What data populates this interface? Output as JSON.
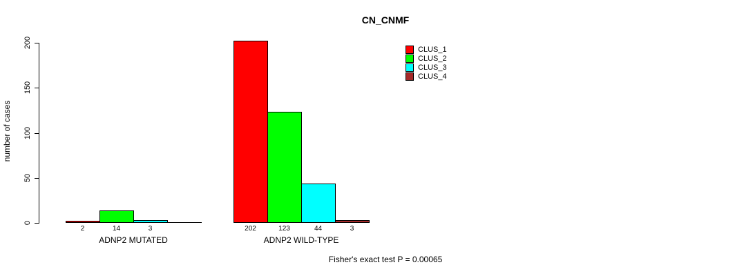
{
  "title": "CN_CNMF",
  "ylabel": "number of cases",
  "footer": "Fisher's exact test P = 0.00065",
  "chart_data": {
    "type": "bar",
    "title": "CN_CNMF",
    "xlabel": "",
    "ylabel": "number of cases",
    "ylim": [
      0,
      200
    ],
    "yticks": [
      0,
      50,
      100,
      150,
      200
    ],
    "grid": false,
    "legend_position": "top-right",
    "categories": [
      "ADNP2 MUTATED",
      "ADNP2 WILD-TYPE"
    ],
    "series": [
      {
        "name": "CLUS_1",
        "color": "#ff0000",
        "values": [
          2,
          202
        ]
      },
      {
        "name": "CLUS_2",
        "color": "#00ff00",
        "values": [
          14,
          123
        ]
      },
      {
        "name": "CLUS_3",
        "color": "#00ffff",
        "values": [
          3,
          44
        ]
      },
      {
        "name": "CLUS_4",
        "color": "#a52a2a",
        "values": [
          0,
          3
        ]
      }
    ],
    "bar_labels": [
      [
        "2",
        "14",
        "3",
        ""
      ],
      [
        "202",
        "123",
        "44",
        "3"
      ]
    ],
    "annotation": "Fisher's exact test P = 0.00065"
  }
}
